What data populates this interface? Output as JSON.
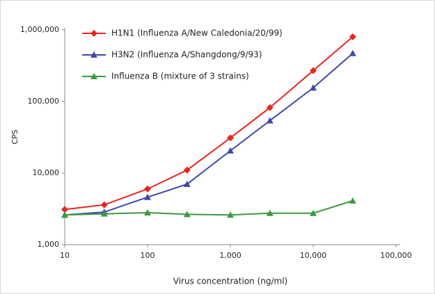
{
  "chart_data": {
    "type": "line",
    "log_x": true,
    "log_y": true,
    "grid": false,
    "legend": "upper left",
    "xlabel": "Virus concentration (ng/ml)",
    "ylabel": "CPS",
    "x": [
      10,
      30,
      100,
      300,
      1000,
      3000,
      10000,
      30000
    ],
    "series": [
      {
        "name": "H1N1 (Influenza A/New Caledonia/20/99)",
        "color": "#e8261f",
        "marker": "diamond",
        "values": [
          3100,
          3600,
          6000,
          11000,
          31000,
          82000,
          270000,
          800000
        ]
      },
      {
        "name": "H3N2 (Influenza A/Shangdong/9/93)",
        "color": "#3e49a8",
        "marker": "triangle",
        "values": [
          2600,
          2850,
          4600,
          7000,
          20500,
          54000,
          155000,
          470000
        ]
      },
      {
        "name": "Influenza B (mixture of 3 strains)",
        "color": "#3a9a3f",
        "marker": "triangle",
        "values": [
          2600,
          2700,
          2800,
          2650,
          2600,
          2750,
          2750,
          4100
        ]
      }
    ],
    "xlim": [
      10,
      100000
    ],
    "xticks": [
      10,
      100,
      {
        "value": 1000,
        "label": "1,000"
      },
      {
        "value": 10000,
        "label": "10,000"
      },
      {
        "value": 100000,
        "label": "100,000"
      }
    ],
    "ylim": [
      1000,
      1000000
    ],
    "yticks": [
      {
        "value": 1000,
        "label": "1,000"
      },
      {
        "value": 10000,
        "label": "10,000"
      },
      {
        "value": 100000,
        "label": "100,000"
      },
      {
        "value": 1000000,
        "label": "1,000,000"
      }
    ]
  }
}
